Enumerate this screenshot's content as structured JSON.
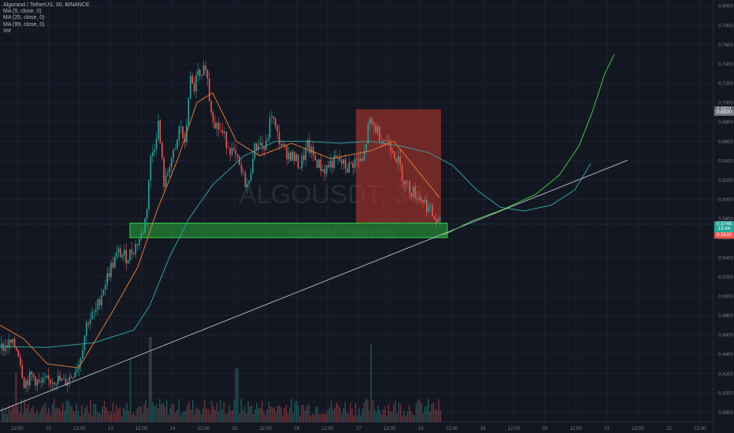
{
  "header": {
    "title": "Algorand / TetherUS, 30, BINANCE",
    "indicators": [
      "MA (5, close, 0)",
      "MA (25, close, 0)",
      "MA (99, close, 0)",
      "Vol"
    ]
  },
  "watermark": {
    "symbol": "ALGOUSDT, 30",
    "name": "Algorand / TetherUS"
  },
  "price_badges": [
    {
      "label": "0.6931",
      "value": 0.6931,
      "color": "#5d606b"
    },
    {
      "label": "0.6930",
      "value": 0.6895,
      "color": "#787b86"
    },
    {
      "label": "0.5745",
      "value": 0.5745,
      "color": "#26a69a"
    },
    {
      "label": "13:44",
      "value": 0.5695,
      "color": "#26a69a"
    },
    {
      "label": "0.5630",
      "value": 0.563,
      "color": "#ef5350"
    }
  ],
  "colors": {
    "background": "#131722",
    "grid": "#1e2230",
    "up": "#26a69a",
    "down": "#ef5350",
    "ma5": "#ef5350",
    "ma25": "#e0782e",
    "ma99": "#2f9f9c",
    "zone": "#2ecc40",
    "stop_zone": "#c0392b",
    "projection": "#43c443",
    "trendline": "#d1d4dc"
  },
  "chart_data": {
    "type": "candlestick",
    "symbol": "ALGOUSDT",
    "interval": "30",
    "exchange": "BINANCE",
    "y_ticks": [
      "0.8000",
      "0.7800",
      "0.7600",
      "0.7400",
      "0.7200",
      "0.7000",
      "0.6800",
      "0.6600",
      "0.6400",
      "0.6200",
      "0.6000",
      "0.5800",
      "0.5600",
      "0.5400",
      "0.5200",
      "0.5000",
      "0.4800",
      "0.4600",
      "0.4400",
      "0.4200",
      "0.4000",
      "0.3800"
    ],
    "x_ticks": [
      "12:00",
      "12",
      "12:00",
      "13",
      "12:00",
      "14",
      "12:00",
      "15",
      "12:00",
      "16",
      "12:00",
      "17",
      "12:00",
      "18",
      "12:00",
      "19",
      "12:00",
      "20",
      "12:00",
      "21",
      "12:00",
      "22",
      "12:00"
    ],
    "ylim": [
      0.37,
      0.806
    ],
    "close_path": [
      {
        "x": 0,
        "y": 0.446
      },
      {
        "x": 12,
        "y": 0.451
      },
      {
        "x": 22,
        "y": 0.445
      },
      {
        "x": 30,
        "y": 0.41
      },
      {
        "x": 40,
        "y": 0.418
      },
      {
        "x": 50,
        "y": 0.408
      },
      {
        "x": 60,
        "y": 0.412
      },
      {
        "x": 70,
        "y": 0.415
      },
      {
        "x": 80,
        "y": 0.41
      },
      {
        "x": 90,
        "y": 0.418
      },
      {
        "x": 100,
        "y": 0.432
      },
      {
        "x": 110,
        "y": 0.475
      },
      {
        "x": 120,
        "y": 0.482
      },
      {
        "x": 130,
        "y": 0.508
      },
      {
        "x": 140,
        "y": 0.53
      },
      {
        "x": 150,
        "y": 0.545
      },
      {
        "x": 160,
        "y": 0.54
      },
      {
        "x": 170,
        "y": 0.55
      },
      {
        "x": 180,
        "y": 0.565
      },
      {
        "x": 185,
        "y": 0.585
      },
      {
        "x": 190,
        "y": 0.64
      },
      {
        "x": 195,
        "y": 0.655
      },
      {
        "x": 200,
        "y": 0.68
      },
      {
        "x": 208,
        "y": 0.612
      },
      {
        "x": 215,
        "y": 0.64
      },
      {
        "x": 222,
        "y": 0.648
      },
      {
        "x": 228,
        "y": 0.68
      },
      {
        "x": 234,
        "y": 0.652
      },
      {
        "x": 240,
        "y": 0.725
      },
      {
        "x": 245,
        "y": 0.712
      },
      {
        "x": 250,
        "y": 0.73
      },
      {
        "x": 255,
        "y": 0.72
      },
      {
        "x": 260,
        "y": 0.742
      },
      {
        "x": 266,
        "y": 0.698
      },
      {
        "x": 272,
        "y": 0.68
      },
      {
        "x": 280,
        "y": 0.67
      },
      {
        "x": 290,
        "y": 0.655
      },
      {
        "x": 300,
        "y": 0.64
      },
      {
        "x": 308,
        "y": 0.622
      },
      {
        "x": 315,
        "y": 0.612
      },
      {
        "x": 320,
        "y": 0.648
      },
      {
        "x": 328,
        "y": 0.66
      },
      {
        "x": 336,
        "y": 0.65
      },
      {
        "x": 344,
        "y": 0.69
      },
      {
        "x": 350,
        "y": 0.668
      },
      {
        "x": 360,
        "y": 0.65
      },
      {
        "x": 370,
        "y": 0.645
      },
      {
        "x": 380,
        "y": 0.635
      },
      {
        "x": 390,
        "y": 0.655
      },
      {
        "x": 400,
        "y": 0.64
      },
      {
        "x": 410,
        "y": 0.63
      },
      {
        "x": 420,
        "y": 0.638
      },
      {
        "x": 430,
        "y": 0.64
      },
      {
        "x": 440,
        "y": 0.632
      },
      {
        "x": 450,
        "y": 0.64
      },
      {
        "x": 460,
        "y": 0.638
      },
      {
        "x": 468,
        "y": 0.68
      },
      {
        "x": 475,
        "y": 0.675
      },
      {
        "x": 482,
        "y": 0.665
      },
      {
        "x": 490,
        "y": 0.66
      },
      {
        "x": 497,
        "y": 0.655
      },
      {
        "x": 505,
        "y": 0.638
      },
      {
        "x": 512,
        "y": 0.62
      },
      {
        "x": 520,
        "y": 0.61
      },
      {
        "x": 528,
        "y": 0.605
      },
      {
        "x": 536,
        "y": 0.6
      },
      {
        "x": 544,
        "y": 0.59
      },
      {
        "x": 552,
        "y": 0.578
      },
      {
        "x": 558,
        "y": 0.5745
      }
    ],
    "ma5_path": [
      {
        "x": 0,
        "y": 0.452
      },
      {
        "x": 20,
        "y": 0.448
      },
      {
        "x": 40,
        "y": 0.42
      },
      {
        "x": 70,
        "y": 0.414
      },
      {
        "x": 100,
        "y": 0.43
      },
      {
        "x": 140,
        "y": 0.52
      },
      {
        "x": 180,
        "y": 0.56
      },
      {
        "x": 200,
        "y": 0.65
      },
      {
        "x": 230,
        "y": 0.66
      },
      {
        "x": 255,
        "y": 0.715
      },
      {
        "x": 275,
        "y": 0.69
      },
      {
        "x": 310,
        "y": 0.63
      },
      {
        "x": 350,
        "y": 0.665
      },
      {
        "x": 400,
        "y": 0.64
      },
      {
        "x": 460,
        "y": 0.64
      },
      {
        "x": 480,
        "y": 0.67
      },
      {
        "x": 520,
        "y": 0.615
      },
      {
        "x": 558,
        "y": 0.578
      }
    ],
    "ma25_path": [
      {
        "x": 0,
        "y": 0.47
      },
      {
        "x": 30,
        "y": 0.456
      },
      {
        "x": 60,
        "y": 0.43
      },
      {
        "x": 100,
        "y": 0.426
      },
      {
        "x": 140,
        "y": 0.48
      },
      {
        "x": 175,
        "y": 0.53
      },
      {
        "x": 200,
        "y": 0.59
      },
      {
        "x": 225,
        "y": 0.64
      },
      {
        "x": 250,
        "y": 0.7
      },
      {
        "x": 270,
        "y": 0.71
      },
      {
        "x": 300,
        "y": 0.66
      },
      {
        "x": 330,
        "y": 0.645
      },
      {
        "x": 370,
        "y": 0.658
      },
      {
        "x": 420,
        "y": 0.642
      },
      {
        "x": 470,
        "y": 0.65
      },
      {
        "x": 500,
        "y": 0.66
      },
      {
        "x": 530,
        "y": 0.63
      },
      {
        "x": 558,
        "y": 0.602
      }
    ],
    "ma99_path": [
      {
        "x": 0,
        "y": 0.448
      },
      {
        "x": 60,
        "y": 0.447
      },
      {
        "x": 120,
        "y": 0.452
      },
      {
        "x": 170,
        "y": 0.465
      },
      {
        "x": 190,
        "y": 0.49
      },
      {
        "x": 215,
        "y": 0.54
      },
      {
        "x": 240,
        "y": 0.58
      },
      {
        "x": 270,
        "y": 0.615
      },
      {
        "x": 310,
        "y": 0.645
      },
      {
        "x": 350,
        "y": 0.66
      },
      {
        "x": 390,
        "y": 0.66
      },
      {
        "x": 430,
        "y": 0.658
      },
      {
        "x": 470,
        "y": 0.66
      },
      {
        "x": 510,
        "y": 0.655
      },
      {
        "x": 545,
        "y": 0.648
      },
      {
        "x": 575,
        "y": 0.635
      },
      {
        "x": 605,
        "y": 0.61
      },
      {
        "x": 635,
        "y": 0.592
      },
      {
        "x": 665,
        "y": 0.588
      },
      {
        "x": 700,
        "y": 0.594
      },
      {
        "x": 730,
        "y": 0.61
      },
      {
        "x": 750,
        "y": 0.637
      }
    ],
    "support_zone": {
      "x0": 165,
      "x1": 568,
      "y_top": 0.5755,
      "y_bottom": 0.5605
    },
    "stop_zone": {
      "x0": 452,
      "x1": 560,
      "y_top": 0.6931,
      "y_bottom": 0.5755
    },
    "trendline": {
      "x0": 0,
      "x1": 797,
      "y0": 0.3815,
      "y1": 0.6405
    },
    "projection": [
      {
        "x": 562,
        "y": 0.5625
      },
      {
        "x": 600,
        "y": 0.578
      },
      {
        "x": 640,
        "y": 0.59
      },
      {
        "x": 680,
        "y": 0.605
      },
      {
        "x": 710,
        "y": 0.625
      },
      {
        "x": 735,
        "y": 0.655
      },
      {
        "x": 752,
        "y": 0.69
      },
      {
        "x": 768,
        "y": 0.73
      },
      {
        "x": 780,
        "y": 0.75
      }
    ],
    "volume_spikes": [
      {
        "x": 190,
        "h": 0.6
      },
      {
        "x": 470,
        "h": 0.55
      },
      {
        "x": 165,
        "h": 0.45
      },
      {
        "x": 300,
        "h": 0.38
      },
      {
        "x": 20,
        "h": 0.35
      }
    ]
  }
}
